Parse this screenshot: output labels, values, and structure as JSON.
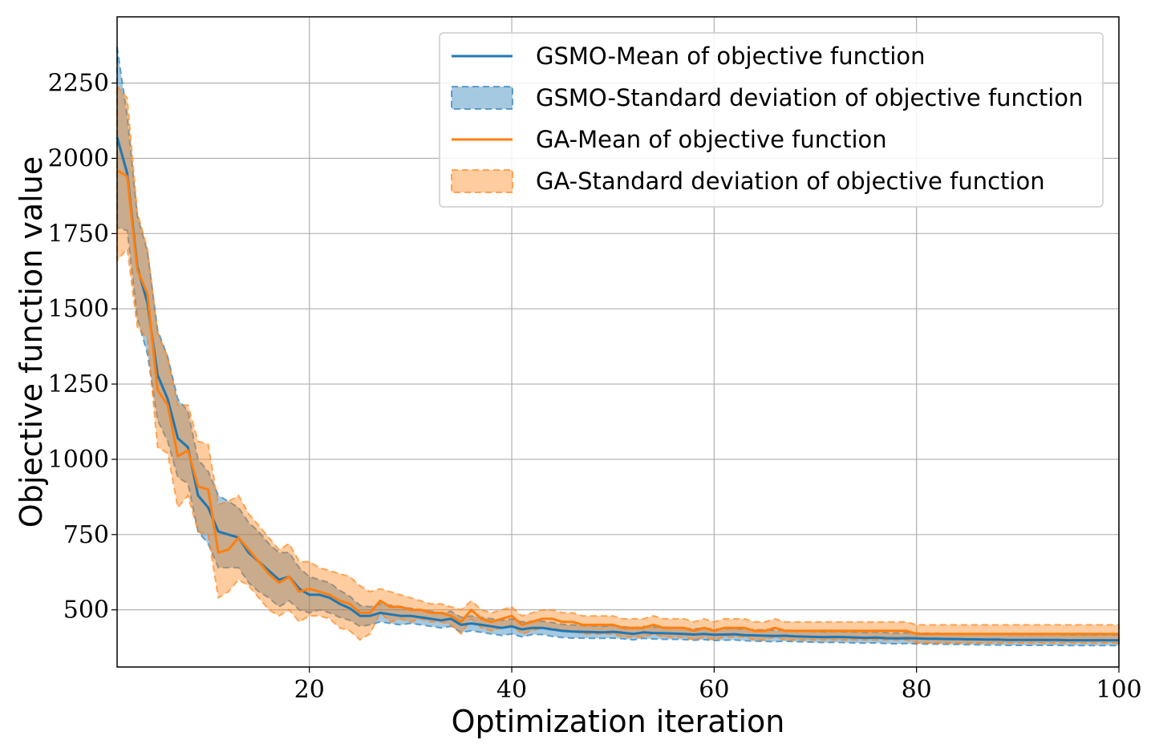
{
  "chart_data": {
    "type": "line",
    "xlabel": "Optimization iteration",
    "ylabel": "Objective function value",
    "xlim": [
      1,
      100
    ],
    "ylim": [
      310,
      2470
    ],
    "xticks": [
      20,
      40,
      60,
      80,
      100
    ],
    "yticks": [
      500,
      750,
      1000,
      1250,
      1500,
      1750,
      2000,
      2250
    ],
    "grid": true,
    "legend_position": "top-right",
    "colors": {
      "gsmo": "#1f77b4",
      "ga": "#ff7f0e"
    },
    "x": [
      1,
      2,
      3,
      4,
      5,
      6,
      7,
      8,
      9,
      10,
      11,
      12,
      13,
      14,
      15,
      16,
      17,
      18,
      19,
      20,
      21,
      22,
      23,
      24,
      25,
      26,
      27,
      28,
      29,
      30,
      31,
      32,
      33,
      34,
      35,
      36,
      37,
      38,
      39,
      40,
      41,
      42,
      43,
      44,
      45,
      46,
      47,
      48,
      49,
      50,
      51,
      52,
      53,
      54,
      55,
      56,
      57,
      58,
      59,
      60,
      61,
      62,
      63,
      64,
      65,
      66,
      67,
      68,
      69,
      70,
      71,
      72,
      73,
      74,
      75,
      76,
      77,
      78,
      79,
      80,
      81,
      82,
      83,
      84,
      85,
      86,
      87,
      88,
      89,
      90,
      91,
      92,
      93,
      94,
      95,
      96,
      97,
      98,
      99,
      100
    ],
    "series": [
      {
        "name": "GSMO-Mean of objective function",
        "kind": "mean",
        "values": [
          2070,
          1950,
          1640,
          1520,
          1280,
          1200,
          1070,
          1040,
          880,
          840,
          760,
          750,
          740,
          690,
          660,
          630,
          600,
          610,
          570,
          550,
          550,
          540,
          520,
          505,
          480,
          480,
          490,
          485,
          480,
          480,
          475,
          470,
          465,
          470,
          450,
          455,
          450,
          445,
          440,
          445,
          435,
          440,
          440,
          435,
          430,
          428,
          427,
          426,
          425,
          427,
          424,
          420,
          425,
          423,
          422,
          421,
          420,
          418,
          420,
          417,
          418,
          419,
          416,
          415,
          414,
          413,
          414,
          412,
          411,
          410,
          409,
          410,
          409,
          408,
          407,
          408,
          406,
          405,
          406,
          405,
          404,
          404,
          403,
          403,
          402,
          402,
          401,
          401,
          400,
          400,
          400,
          400,
          400,
          400,
          399,
          399,
          399,
          399,
          399,
          399
        ]
      },
      {
        "name": "GSMO-Standard deviation of objective function",
        "kind": "band",
        "upper": [
          2370,
          2140,
          1810,
          1690,
          1430,
          1340,
          1200,
          1160,
          1000,
          960,
          880,
          860,
          840,
          790,
          760,
          720,
          690,
          690,
          640,
          610,
          600,
          590,
          565,
          545,
          515,
          510,
          520,
          515,
          510,
          505,
          500,
          495,
          490,
          495,
          475,
          480,
          475,
          470,
          465,
          470,
          460,
          462,
          462,
          458,
          452,
          450,
          448,
          447,
          445,
          448,
          444,
          440,
          445,
          443,
          442,
          440,
          439,
          437,
          439,
          436,
          437,
          438,
          435,
          434,
          433,
          432,
          432,
          430,
          429,
          428,
          427,
          428,
          427,
          426,
          425,
          426,
          424,
          423,
          424,
          423,
          422,
          422,
          421,
          421,
          420,
          420,
          419,
          419,
          418,
          418,
          418,
          418,
          418,
          418,
          417,
          417,
          417,
          417,
          417,
          417
        ],
        "lower": [
          1770,
          1760,
          1470,
          1350,
          1130,
          1060,
          940,
          920,
          760,
          720,
          640,
          640,
          640,
          590,
          560,
          540,
          510,
          530,
          500,
          490,
          500,
          490,
          475,
          465,
          445,
          450,
          460,
          455,
          450,
          455,
          450,
          445,
          440,
          445,
          425,
          430,
          425,
          420,
          415,
          420,
          410,
          418,
          418,
          412,
          408,
          406,
          406,
          405,
          405,
          406,
          404,
          400,
          405,
          403,
          402,
          402,
          401,
          399,
          401,
          398,
          399,
          400,
          397,
          396,
          395,
          394,
          396,
          394,
          393,
          392,
          391,
          392,
          391,
          390,
          389,
          390,
          388,
          387,
          388,
          387,
          386,
          386,
          385,
          385,
          384,
          384,
          383,
          383,
          382,
          382,
          382,
          382,
          382,
          382,
          381,
          381,
          381,
          381,
          381,
          381
        ]
      },
      {
        "name": "GA-Mean of objective function",
        "kind": "mean",
        "values": [
          1960,
          1940,
          1630,
          1550,
          1230,
          1180,
          1010,
          1030,
          910,
          900,
          690,
          700,
          740,
          700,
          660,
          620,
          590,
          610,
          560,
          570,
          560,
          550,
          530,
          520,
          490,
          490,
          530,
          510,
          510,
          500,
          500,
          490,
          490,
          480,
          460,
          500,
          470,
          460,
          470,
          480,
          450,
          460,
          470,
          470,
          460,
          460,
          450,
          450,
          450,
          450,
          440,
          440,
          440,
          450,
          440,
          440,
          440,
          430,
          440,
          430,
          440,
          440,
          440,
          430,
          430,
          440,
          430,
          430,
          430,
          430,
          430,
          430,
          430,
          430,
          430,
          430,
          430,
          430,
          430,
          420,
          420,
          420,
          420,
          420,
          420,
          420,
          420,
          420,
          420,
          420,
          420,
          420,
          420,
          420,
          420,
          420,
          420,
          420,
          420,
          420
        ]
      },
      {
        "name": "GA-Standard deviation of objective function",
        "kind": "band",
        "upper": [
          2240,
          2200,
          1820,
          1700,
          1420,
          1340,
          1180,
          1180,
          1060,
          1050,
          850,
          860,
          880,
          820,
          780,
          740,
          700,
          720,
          660,
          660,
          640,
          630,
          620,
          610,
          580,
          560,
          570,
          560,
          550,
          540,
          530,
          520,
          520,
          510,
          500,
          530,
          500,
          490,
          500,
          510,
          480,
          490,
          500,
          500,
          490,
          490,
          480,
          480,
          480,
          480,
          470,
          470,
          470,
          480,
          470,
          470,
          470,
          460,
          470,
          460,
          470,
          470,
          470,
          460,
          460,
          470,
          460,
          460,
          460,
          460,
          460,
          460,
          460,
          460,
          460,
          460,
          460,
          460,
          460,
          450,
          450,
          450,
          450,
          450,
          450,
          450,
          450,
          450,
          450,
          450,
          450,
          450,
          450,
          450,
          450,
          450,
          450,
          450,
          450,
          450
        ],
        "lower": [
          1660,
          1700,
          1440,
          1400,
          1040,
          1020,
          840,
          880,
          760,
          750,
          540,
          560,
          600,
          580,
          540,
          500,
          480,
          500,
          460,
          480,
          480,
          470,
          440,
          430,
          400,
          420,
          490,
          460,
          470,
          460,
          470,
          460,
          460,
          450,
          420,
          470,
          440,
          430,
          440,
          450,
          420,
          430,
          440,
          440,
          430,
          430,
          420,
          420,
          420,
          420,
          410,
          410,
          410,
          420,
          410,
          410,
          410,
          400,
          410,
          400,
          410,
          410,
          410,
          400,
          400,
          410,
          400,
          400,
          400,
          400,
          400,
          400,
          400,
          400,
          400,
          400,
          400,
          400,
          400,
          390,
          390,
          390,
          390,
          390,
          390,
          390,
          390,
          390,
          390,
          390,
          390,
          390,
          390,
          390,
          390,
          390,
          390,
          390,
          390,
          390
        ]
      }
    ]
  }
}
